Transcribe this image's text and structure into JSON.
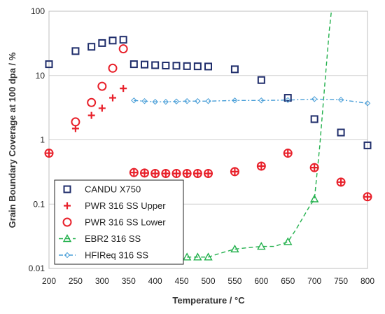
{
  "chart_data": {
    "type": "scatter",
    "title": "",
    "xlabel": "Temperature / °C",
    "ylabel": "Grain Boundary Coverage at 100 dpa / %",
    "xlim": [
      200,
      800
    ],
    "ylim": [
      0.01,
      100
    ],
    "yscale": "log",
    "x_ticks": [
      "200",
      "250",
      "300",
      "350",
      "400",
      "450",
      "500",
      "550",
      "600",
      "650",
      "700",
      "750",
      "800"
    ],
    "y_ticks": [
      "0.01",
      "0.1",
      "1",
      "10",
      "100"
    ],
    "grid": "horizontal major gridlines",
    "legend_position": "lower-left",
    "series": [
      {
        "name": "CANDU X750",
        "marker": "square",
        "color": "#1f2d6b",
        "x": [
          200,
          250,
          280,
          300,
          320,
          340,
          360,
          380,
          400,
          420,
          440,
          460,
          480,
          500,
          550,
          600,
          650,
          700,
          750,
          800
        ],
        "y": [
          15,
          24,
          28,
          32,
          35,
          36,
          15,
          14.8,
          14.5,
          14.3,
          14.2,
          14,
          13.9,
          13.8,
          12.5,
          8.5,
          4.5,
          2.1,
          1.3,
          0.82
        ]
      },
      {
        "name": "PWR 316 SS Upper",
        "marker": "plus",
        "color": "#e8202a",
        "x": [
          200,
          250,
          280,
          300,
          320,
          340,
          360,
          380,
          400,
          420,
          440,
          460,
          480,
          500,
          550,
          600,
          650,
          700,
          750,
          800
        ],
        "y": [
          0.62,
          1.5,
          2.4,
          3.1,
          4.5,
          6.3,
          0.31,
          0.305,
          0.3,
          0.3,
          0.3,
          0.3,
          0.3,
          0.3,
          0.32,
          0.39,
          0.62,
          0.37,
          0.22,
          0.13
        ]
      },
      {
        "name": "PWR 316 SS Lower",
        "marker": "circle",
        "color": "#e8202a",
        "x": [
          200,
          250,
          280,
          300,
          320,
          340,
          360,
          380,
          400,
          420,
          440,
          460,
          480,
          500,
          550,
          600,
          650,
          700,
          750,
          800
        ],
        "y": [
          0.62,
          1.9,
          3.8,
          6.8,
          13,
          26,
          0.31,
          0.305,
          0.3,
          0.3,
          0.3,
          0.3,
          0.3,
          0.3,
          0.32,
          0.39,
          0.62,
          0.37,
          0.22,
          0.13
        ]
      },
      {
        "name": "EBR2 316 SS",
        "marker": "triangle",
        "color": "#22b04c",
        "line": "dashed",
        "x": [
          460,
          480,
          500,
          550,
          600,
          650,
          700
        ],
        "y": [
          0.015,
          0.015,
          0.015,
          0.02,
          0.022,
          0.026,
          0.12
        ],
        "curve_x": [
          460,
          480,
          500,
          520,
          550,
          575,
          600,
          625,
          650,
          665,
          680,
          690,
          700,
          710,
          720,
          728,
          732
        ],
        "curve_y": [
          0.015,
          0.015,
          0.015,
          0.017,
          0.02,
          0.021,
          0.022,
          0.022,
          0.026,
          0.04,
          0.065,
          0.09,
          0.12,
          0.8,
          8,
          50,
          110
        ]
      },
      {
        "name": "HFIReq 316 SS",
        "marker": "diamond",
        "color": "#4a9fd8",
        "line": "dash-dot",
        "x": [
          360,
          380,
          400,
          420,
          440,
          460,
          480,
          500,
          550,
          600,
          650,
          700,
          750,
          800
        ],
        "y": [
          4.1,
          4.0,
          3.9,
          3.9,
          3.95,
          4.0,
          4.0,
          4.0,
          4.1,
          4.1,
          4.15,
          4.3,
          4.2,
          3.7
        ]
      }
    ]
  }
}
